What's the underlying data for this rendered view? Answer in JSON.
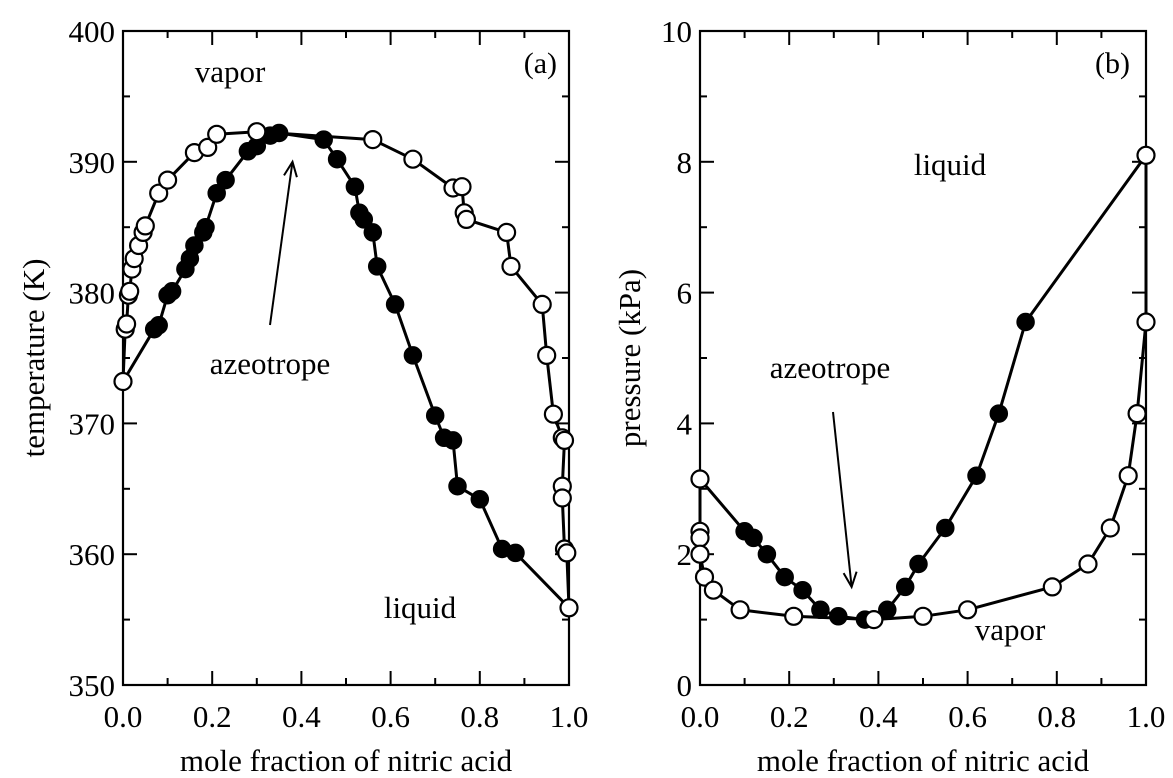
{
  "chart_data": [
    {
      "type": "line",
      "panel_label": "(a)",
      "xlabel": "mole fraction of nitric acid",
      "ylabel": "temperature (K)",
      "xlim": [
        0.0,
        1.0
      ],
      "ylim": [
        350,
        400
      ],
      "xticks": [
        "0.0",
        "0.2",
        "0.4",
        "0.6",
        "0.8",
        "1.0"
      ],
      "yticks": [
        "350",
        "360",
        "370",
        "380",
        "390",
        "400"
      ],
      "annotations": [
        {
          "text": "vapor"
        },
        {
          "text": "liquid"
        },
        {
          "text": "azeotrope",
          "arrow_to": [
            0.38,
            390.0
          ]
        }
      ],
      "series": [
        {
          "marker": "filled",
          "points": [
            [
              0.0,
              373.2
            ],
            [
              0.07,
              377.2
            ],
            [
              0.08,
              377.5
            ],
            [
              0.1,
              379.8
            ],
            [
              0.11,
              380.1
            ],
            [
              0.14,
              381.8
            ],
            [
              0.15,
              382.6
            ],
            [
              0.16,
              383.6
            ],
            [
              0.18,
              384.6
            ],
            [
              0.185,
              385.0
            ],
            [
              0.21,
              387.6
            ],
            [
              0.23,
              388.6
            ],
            [
              0.28,
              390.8
            ],
            [
              0.3,
              391.2
            ],
            [
              0.33,
              392.0
            ],
            [
              0.35,
              392.2
            ],
            [
              0.45,
              391.7
            ],
            [
              0.48,
              390.2
            ],
            [
              0.52,
              388.1
            ],
            [
              0.53,
              386.1
            ],
            [
              0.54,
              385.6
            ],
            [
              0.56,
              384.6
            ],
            [
              0.57,
              382.0
            ],
            [
              0.61,
              379.1
            ],
            [
              0.65,
              375.2
            ],
            [
              0.7,
              370.6
            ],
            [
              0.72,
              368.9
            ],
            [
              0.74,
              368.7
            ],
            [
              0.75,
              365.2
            ],
            [
              0.8,
              364.2
            ],
            [
              0.85,
              360.4
            ],
            [
              0.88,
              360.1
            ],
            [
              1.0,
              355.9
            ]
          ]
        },
        {
          "marker": "open",
          "points": [
            [
              0.0,
              373.2
            ],
            [
              0.005,
              377.2
            ],
            [
              0.008,
              377.6
            ],
            [
              0.012,
              379.8
            ],
            [
              0.015,
              380.1
            ],
            [
              0.02,
              381.8
            ],
            [
              0.025,
              382.6
            ],
            [
              0.035,
              383.6
            ],
            [
              0.045,
              384.6
            ],
            [
              0.05,
              385.1
            ],
            [
              0.08,
              387.6
            ],
            [
              0.1,
              388.6
            ],
            [
              0.16,
              390.7
            ],
            [
              0.19,
              391.1
            ],
            [
              0.21,
              392.1
            ],
            [
              0.3,
              392.3
            ],
            [
              0.56,
              391.7
            ],
            [
              0.65,
              390.2
            ],
            [
              0.74,
              388.0
            ],
            [
              0.76,
              388.1
            ],
            [
              0.765,
              386.1
            ],
            [
              0.77,
              385.6
            ],
            [
              0.86,
              384.6
            ],
            [
              0.87,
              382.0
            ],
            [
              0.94,
              379.1
            ],
            [
              0.95,
              375.2
            ],
            [
              0.965,
              370.7
            ],
            [
              0.985,
              368.9
            ],
            [
              0.99,
              368.7
            ],
            [
              0.985,
              365.2
            ],
            [
              0.985,
              364.3
            ],
            [
              0.99,
              360.4
            ],
            [
              0.995,
              360.1
            ],
            [
              1.0,
              355.9
            ]
          ]
        }
      ]
    },
    {
      "type": "line",
      "panel_label": "(b)",
      "xlabel": "mole fraction of nitric acid",
      "ylabel": "pressure (kPa)",
      "xlim": [
        0.0,
        1.0
      ],
      "ylim": [
        0,
        10
      ],
      "xticks": [
        "0.0",
        "0.2",
        "0.4",
        "0.6",
        "0.8",
        "1.0"
      ],
      "yticks": [
        "0",
        "2",
        "4",
        "6",
        "8",
        "10"
      ],
      "annotations": [
        {
          "text": "liquid"
        },
        {
          "text": "vapor"
        },
        {
          "text": "azeotrope",
          "arrow_to": [
            0.34,
            1.5
          ]
        }
      ],
      "series": [
        {
          "marker": "filled",
          "points": [
            [
              0.0,
              3.15
            ],
            [
              0.1,
              2.35
            ],
            [
              0.12,
              2.25
            ],
            [
              0.15,
              2.0
            ],
            [
              0.19,
              1.65
            ],
            [
              0.23,
              1.45
            ],
            [
              0.27,
              1.15
            ],
            [
              0.31,
              1.05
            ],
            [
              0.37,
              1.0
            ],
            [
              0.42,
              1.15
            ],
            [
              0.46,
              1.5
            ],
            [
              0.49,
              1.85
            ],
            [
              0.55,
              2.4
            ],
            [
              0.62,
              3.2
            ],
            [
              0.67,
              4.15
            ],
            [
              0.73,
              5.55
            ],
            [
              1.0,
              8.1
            ]
          ]
        },
        {
          "marker": "open",
          "points": [
            [
              0.0,
              3.15
            ],
            [
              0.0,
              2.35
            ],
            [
              0.0,
              2.25
            ],
            [
              0.0,
              2.0
            ],
            [
              0.01,
              1.65
            ],
            [
              0.03,
              1.45
            ],
            [
              0.09,
              1.15
            ],
            [
              0.21,
              1.05
            ],
            [
              0.39,
              1.0
            ],
            [
              0.5,
              1.05
            ],
            [
              0.6,
              1.15
            ],
            [
              0.79,
              1.5
            ],
            [
              0.87,
              1.85
            ],
            [
              0.92,
              2.4
            ],
            [
              0.96,
              3.2
            ],
            [
              0.98,
              4.15
            ],
            [
              1.0,
              5.55
            ],
            [
              1.0,
              8.1
            ]
          ]
        }
      ]
    }
  ]
}
